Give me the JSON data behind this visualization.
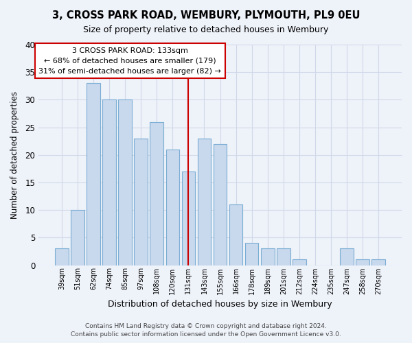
{
  "title": "3, CROSS PARK ROAD, WEMBURY, PLYMOUTH, PL9 0EU",
  "subtitle": "Size of property relative to detached houses in Wembury",
  "xlabel": "Distribution of detached houses by size in Wembury",
  "ylabel": "Number of detached properties",
  "bar_color": "#c8d8ed",
  "bar_edge_color": "#7aadd4",
  "categories": [
    "39sqm",
    "51sqm",
    "62sqm",
    "74sqm",
    "85sqm",
    "97sqm",
    "108sqm",
    "120sqm",
    "131sqm",
    "143sqm",
    "155sqm",
    "166sqm",
    "178sqm",
    "189sqm",
    "201sqm",
    "212sqm",
    "224sqm",
    "235sqm",
    "247sqm",
    "258sqm",
    "270sqm"
  ],
  "values": [
    3,
    10,
    33,
    30,
    30,
    23,
    26,
    21,
    17,
    23,
    22,
    11,
    4,
    3,
    3,
    1,
    0,
    0,
    3,
    1,
    1
  ],
  "ylim": [
    0,
    40
  ],
  "yticks": [
    0,
    5,
    10,
    15,
    20,
    25,
    30,
    35,
    40
  ],
  "vline_idx": 8,
  "vline_color": "#cc0000",
  "annotation_title": "3 CROSS PARK ROAD: 133sqm",
  "annotation_line1": "← 68% of detached houses are smaller (179)",
  "annotation_line2": "31% of semi-detached houses are larger (82) →",
  "annotation_box_color": "#ffffff",
  "annotation_box_edge": "#cc0000",
  "footnote1": "Contains HM Land Registry data © Crown copyright and database right 2024.",
  "footnote2": "Contains public sector information licensed under the Open Government Licence v3.0.",
  "background_color": "#eef2f9",
  "plot_background": "#eef2f9",
  "grid_color": "#d0d8e8"
}
